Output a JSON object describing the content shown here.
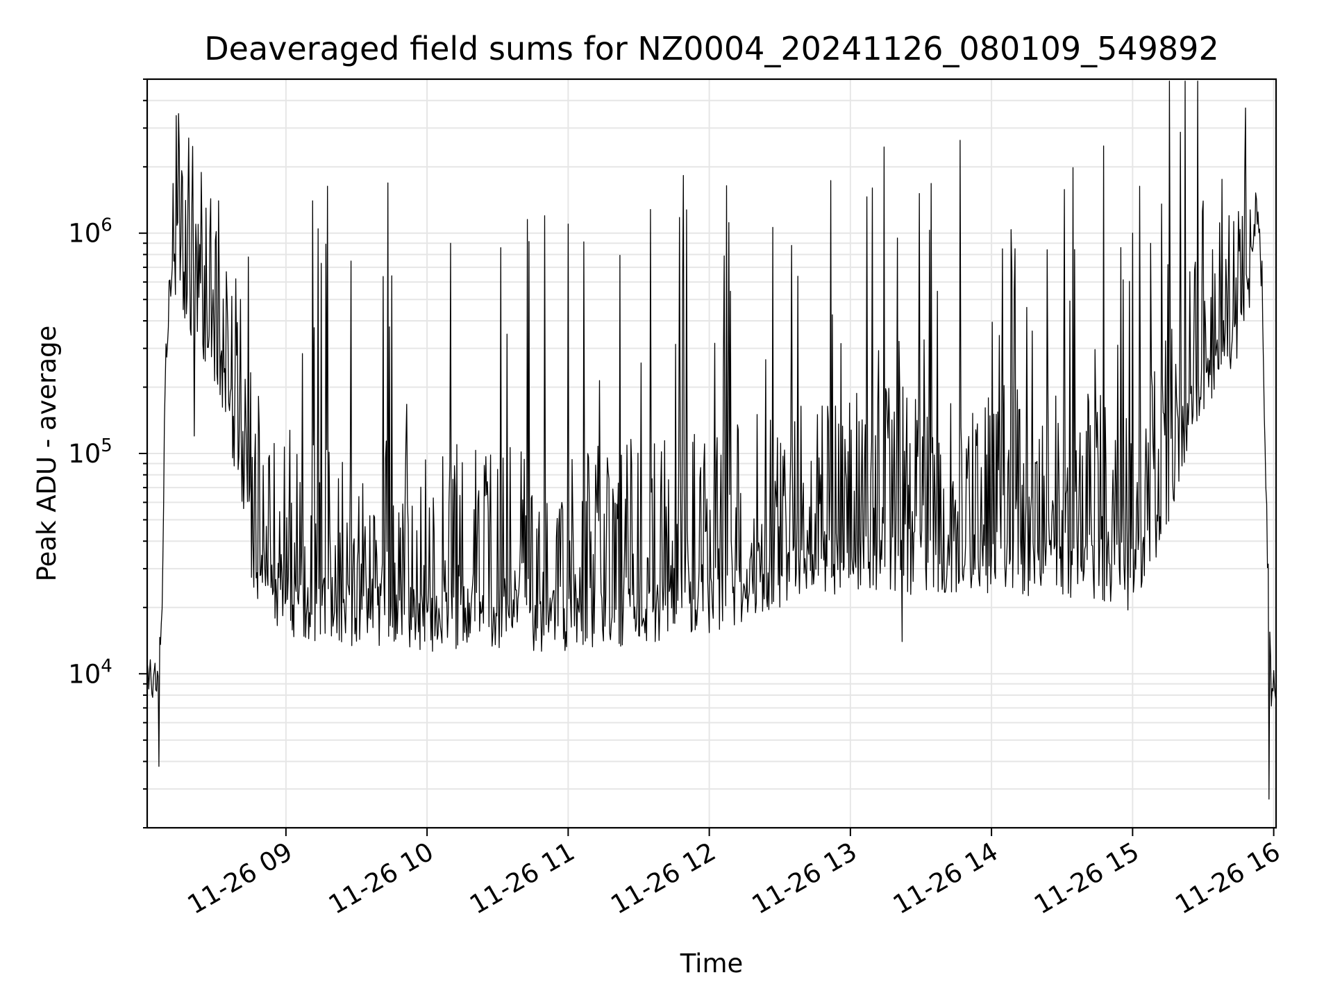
{
  "chart_data": {
    "type": "line",
    "title": "Deaveraged field sums for NZ0004_20241126_080109_549892",
    "xlabel": "Time",
    "ylabel": "Peak ADU - average",
    "yscale": "log",
    "grid": true,
    "line_color": "#000000",
    "grid_color": "#e6e6e6",
    "xlim": [
      "2024-11-26 08:01",
      "2024-11-26 16:01"
    ],
    "ylim": [
      2000,
      5000000
    ],
    "x_ticks": [
      "11-26 09",
      "11-26 10",
      "11-26 11",
      "11-26 12",
      "11-26 13",
      "11-26 14",
      "11-26 15",
      "11-26 16"
    ],
    "y_ticks": [
      {
        "base": "10",
        "exp": "4",
        "value": 10000
      },
      {
        "base": "10",
        "exp": "5",
        "value": 100000
      },
      {
        "base": "10",
        "exp": "6",
        "value": 1000000
      }
    ],
    "series": [
      {
        "name": "",
        "x": [
          "08:01",
          "08:04",
          "08:07",
          "08:09",
          "08:12",
          "08:14",
          "08:16",
          "08:18",
          "08:21",
          "08:24",
          "08:27",
          "08:30",
          "08:33",
          "08:36",
          "08:39",
          "08:42",
          "08:45",
          "08:48",
          "08:51",
          "08:54",
          "08:57",
          "09:00",
          "09:10",
          "09:20",
          "09:30",
          "09:45",
          "10:00",
          "10:15",
          "10:30",
          "10:45",
          "11:00",
          "11:15",
          "11:30",
          "11:45",
          "12:00",
          "12:15",
          "12:30",
          "12:45",
          "13:00",
          "13:15",
          "13:30",
          "13:45",
          "14:00",
          "14:15",
          "14:30",
          "14:45",
          "15:00",
          "15:10",
          "15:20",
          "15:30",
          "15:40",
          "15:47",
          "15:50",
          "15:53",
          "15:55",
          "15:57",
          "15:59",
          "16:01"
        ],
        "y": [
          10000,
          9000,
          15000,
          300000,
          900000,
          1200000,
          850000,
          700000,
          600000,
          520000,
          450000,
          380000,
          300000,
          220000,
          150000,
          90000,
          55000,
          42000,
          36000,
          34000,
          32000,
          30000,
          28000,
          27000,
          26000,
          26000,
          25000,
          25000,
          26000,
          25000,
          25000,
          26000,
          27000,
          28000,
          29000,
          34000,
          40000,
          44000,
          45000,
          45000,
          46000,
          46000,
          46000,
          45000,
          44000,
          42000,
          38000,
          60000,
          150000,
          300000,
          450000,
          600000,
          800000,
          1400000,
          600000,
          50000,
          9000,
          8000
        ]
      }
    ],
    "spikes": [
      {
        "x": "08:16",
        "y": 1800000
      },
      {
        "x": "08:26",
        "y": 1300000
      },
      {
        "x": "08:44",
        "y": 780000
      },
      {
        "x": "09:15",
        "y": 730000
      },
      {
        "x": "09:45",
        "y": 640000
      },
      {
        "x": "10:10",
        "y": 900000
      },
      {
        "x": "10:50",
        "y": 1200000
      },
      {
        "x": "11:00",
        "y": 1100000
      },
      {
        "x": "11:35",
        "y": 1280000
      },
      {
        "x": "12:35",
        "y": 880000
      },
      {
        "x": "13:20",
        "y": 950000
      },
      {
        "x": "14:10",
        "y": 850000
      },
      {
        "x": "14:55",
        "y": 860000
      },
      {
        "x": "15:30",
        "y": 1400000
      },
      {
        "x": "15:48",
        "y": 3700000
      },
      {
        "x": "15:00",
        "y": 1000000
      }
    ],
    "dips": [
      {
        "x": "08:06",
        "y": 3800
      },
      {
        "x": "08:21",
        "y": 120000
      },
      {
        "x": "10:13",
        "y": 13500
      },
      {
        "x": "11:37",
        "y": 14000
      },
      {
        "x": "13:22",
        "y": 14000
      },
      {
        "x": "15:58",
        "y": 2700
      }
    ]
  }
}
